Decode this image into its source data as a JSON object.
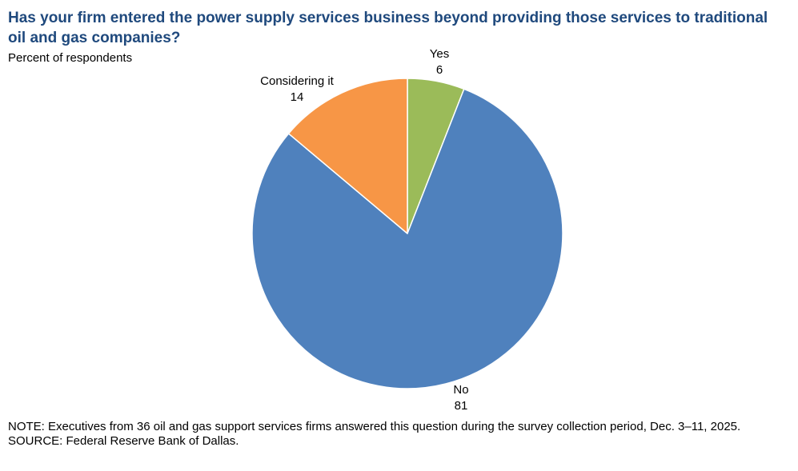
{
  "chart_data": {
    "type": "pie",
    "title": "Has your firm entered the power supply services business beyond providing those services to traditional oil and gas companies?",
    "subtitle": "Percent of respondents",
    "slices": [
      {
        "label": "Yes",
        "value": 6,
        "color": "#9bbb59"
      },
      {
        "label": "No",
        "value": 81,
        "color": "#4f81bd"
      },
      {
        "label": "Considering it",
        "value": 14,
        "color": "#f79646"
      }
    ],
    "start_angle_deg": 0,
    "direction": "clockwise",
    "slice_border_color": "#ffffff"
  },
  "notes": {
    "note": "NOTE: Executives from 36 oil and gas support services firms answered this question during the survey collection period, Dec. 3–11, 2025.",
    "source": "SOURCE: Federal Reserve Bank of Dallas."
  }
}
